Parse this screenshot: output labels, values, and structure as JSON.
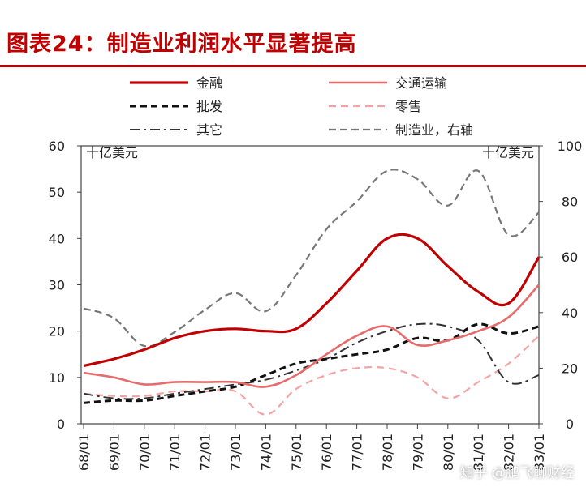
{
  "title": "图表24：制造业利润水平显著提高",
  "watermark": "知乎 @鹏飞聊财经",
  "chart_data": {
    "type": "line",
    "x": [
      "68/01",
      "69/01",
      "70/01",
      "71/01",
      "72/01",
      "73/01",
      "74/01",
      "75/01",
      "76/01",
      "77/01",
      "78/01",
      "79/01",
      "80/01",
      "81/01",
      "82/01",
      "83/01"
    ],
    "left_axis": {
      "unit": "十亿美元",
      "ylim": [
        0,
        60
      ],
      "ticks": [
        0,
        10,
        20,
        30,
        40,
        50,
        60
      ]
    },
    "right_axis": {
      "unit": "十亿美元",
      "ylim": [
        0,
        100
      ],
      "ticks": [
        0,
        20,
        40,
        60,
        80,
        100
      ]
    },
    "legend_position": "top",
    "series": [
      {
        "name": "金融",
        "axis": "left",
        "color": "#c00000",
        "dash": "",
        "width": 3.2,
        "values": [
          12.5,
          14.0,
          16.0,
          18.5,
          20.0,
          20.5,
          20.0,
          20.5,
          26.0,
          33.0,
          40.0,
          40.0,
          34.0,
          28.5,
          26.0,
          36.0
        ]
      },
      {
        "name": "交通运输",
        "axis": "left",
        "color": "#e86a6a",
        "dash": "",
        "width": 2.6,
        "values": [
          11.0,
          10.0,
          8.5,
          9.0,
          9.0,
          9.0,
          8.0,
          10.5,
          15.0,
          19.0,
          21.0,
          17.0,
          18.0,
          20.0,
          23.0,
          30.0
        ]
      },
      {
        "name": "批发",
        "axis": "left",
        "color": "#111111",
        "dash": "8,5",
        "width": 3,
        "values": [
          4.5,
          5.0,
          5.0,
          6.0,
          7.0,
          8.0,
          10.5,
          13.0,
          14.0,
          15.0,
          16.0,
          18.5,
          18.0,
          21.5,
          19.5,
          21.0
        ]
      },
      {
        "name": "零售",
        "axis": "left",
        "color": "#f2a3a3",
        "dash": "9,6",
        "width": 2.2,
        "values": [
          6.5,
          6.0,
          6.0,
          7.0,
          7.0,
          7.0,
          2.0,
          7.5,
          10.5,
          12.0,
          12.0,
          10.0,
          5.5,
          9.0,
          13.0,
          19.0
        ]
      },
      {
        "name": "其它",
        "axis": "left",
        "color": "#333333",
        "dash": "12,5,3,5",
        "width": 2,
        "values": [
          6.5,
          5.5,
          5.5,
          6.5,
          7.5,
          8.5,
          9.5,
          11.5,
          14.0,
          17.5,
          20.0,
          21.5,
          21.0,
          18.0,
          9.0,
          10.5
        ]
      },
      {
        "name": "制造业，右轴",
        "axis": "right",
        "color": "#777777",
        "dash": "9,5",
        "width": 2.2,
        "values": [
          41.5,
          38.0,
          28.0,
          33.0,
          41.0,
          47.0,
          40.5,
          53.5,
          70.0,
          80.0,
          91.0,
          88.0,
          78.5,
          91.0,
          68.0,
          76.0
        ]
      }
    ]
  }
}
